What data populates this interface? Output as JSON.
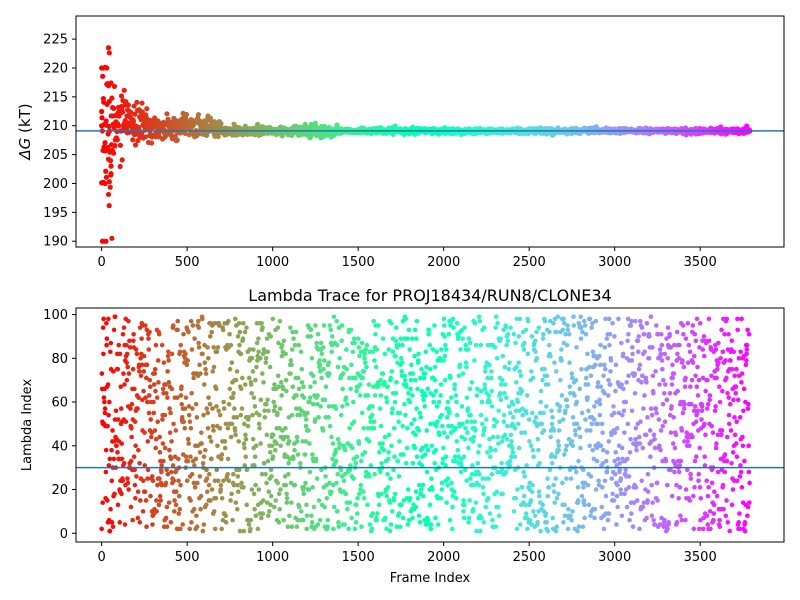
{
  "chart_data": [
    {
      "type": "scatter",
      "title": "",
      "xlabel": "",
      "ylabel": "ΔG (kT)",
      "ylabel_main": "ΔG",
      "ylabel_unit": " (kT)",
      "xlim": [
        -150,
        3990
      ],
      "ylim": [
        189,
        229
      ],
      "xticks": [
        0,
        500,
        1000,
        1500,
        2000,
        2500,
        3000,
        3500
      ],
      "yticks": [
        190,
        195,
        200,
        205,
        210,
        215,
        220,
        225
      ],
      "hline": 209.1,
      "hline_color": "#1f77b4",
      "colormap": "rainbow (red at frame 0 → violet at last frame)",
      "x_range": [
        0,
        3790
      ],
      "convergence": {
        "converged_value": 209.1,
        "note": "spread ±10 early, converging by ~800"
      },
      "early_outliers": [
        [
          0,
          220.0
        ],
        [
          10,
          220.0
        ],
        [
          20,
          220.1
        ],
        [
          30,
          220.0
        ],
        [
          0,
          210.0
        ],
        [
          15,
          210.2
        ],
        [
          25,
          210.1
        ],
        [
          0,
          200.1
        ],
        [
          10,
          200.2
        ],
        [
          20,
          200.0
        ],
        [
          45,
          200.3
        ],
        [
          5,
          190.0
        ],
        [
          25,
          190.0
        ],
        [
          60,
          190.5
        ],
        [
          40,
          223.5
        ],
        [
          45,
          222.6
        ],
        [
          35,
          217.3
        ],
        [
          55,
          217.4
        ],
        [
          75,
          216.8
        ],
        [
          40,
          198.1
        ],
        [
          55,
          201.7
        ],
        [
          40,
          204.2
        ],
        [
          55,
          203.0
        ],
        [
          65,
          205.5
        ],
        [
          45,
          214.2
        ],
        [
          70,
          213.0
        ]
      ],
      "series": [
        {
          "name": "",
          "x": [],
          "y": []
        }
      ]
    },
    {
      "type": "scatter",
      "title": "Lambda Trace for PROJ18434/RUN8/CLONE34",
      "xlabel": "Frame Index",
      "ylabel": "Lambda Index",
      "xlim": [
        -150,
        3990
      ],
      "ylim": [
        -4,
        103
      ],
      "xticks": [
        0,
        500,
        1000,
        1500,
        2000,
        2500,
        3000,
        3500
      ],
      "yticks": [
        0,
        20,
        40,
        60,
        80,
        100
      ],
      "hline": 30,
      "hline_color": "#1f77b4",
      "colormap": "rainbow (red at frame 0 → violet at last frame)",
      "x_range": [
        0,
        3790
      ],
      "lambda_range": [
        1,
        99
      ],
      "series": [
        {
          "name": "",
          "x": [],
          "y": []
        }
      ]
    }
  ]
}
